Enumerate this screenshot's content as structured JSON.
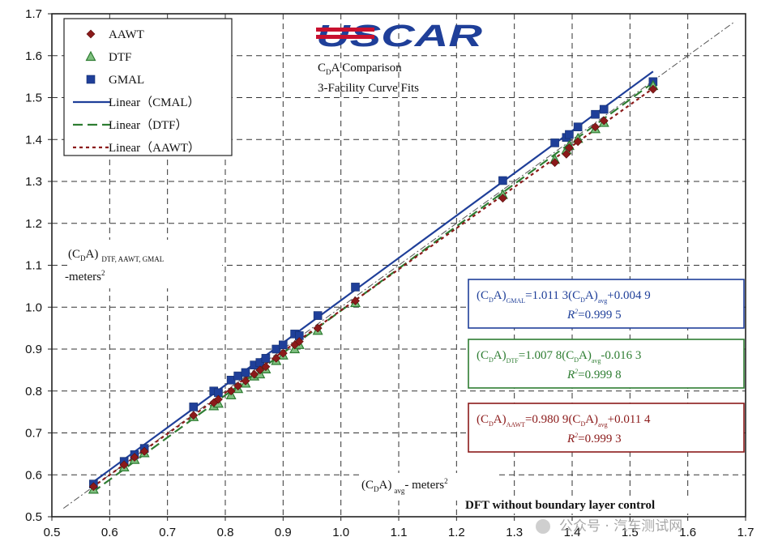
{
  "chart_data": {
    "type": "scatter",
    "title_line1": "C",
    "title_sub": "D",
    "title_line1_rest": "A Comparison",
    "title_line2": "3-Facility Curve Fits",
    "logo_text": "USCAR",
    "xlim": [
      0.5,
      1.7
    ],
    "ylim": [
      0.5,
      1.7
    ],
    "x_ticks": [
      "0.5",
      "0.6",
      "0.7",
      "0.8",
      "0.9",
      "1.0",
      "1.1",
      "1.2",
      "1.3",
      "1.4",
      "1.5",
      "1.6",
      "1.7"
    ],
    "y_ticks": [
      "0.5",
      "0.6",
      "0.7",
      "0.8",
      "0.9",
      "1.0",
      "1.1",
      "1.2",
      "1.3",
      "1.4",
      "1.5",
      "1.6",
      "1.7"
    ],
    "grid": true,
    "legend_position": "top-left",
    "ylabel": {
      "open": "(C",
      "sub_d": "D",
      "close": "A)",
      "subscript": "DTF, AAWT, GMAL",
      "units": "meters",
      "sup": "2"
    },
    "xlabel": {
      "open": "(C",
      "sub_d": "D",
      "close": "A)",
      "subscript": "avg",
      "units": "- meters",
      "sup": "2"
    },
    "footer_note": "DFT without boundary layer control",
    "watermark": "公众号 · 汽车测试网",
    "colors": {
      "AAWT": "#8b1a1a",
      "DTF": "#2e7d32",
      "GMAL": "#1f3f99",
      "grid": "#333333",
      "identity": "#555555"
    },
    "legend": [
      {
        "key": "AAWT",
        "label": "AAWT",
        "marker": "diamond"
      },
      {
        "key": "DTF",
        "label": "DTF",
        "marker": "triangle"
      },
      {
        "key": "GMAL",
        "label": "GMAL",
        "marker": "square"
      },
      {
        "key": "GMAL",
        "label": "Linear（CMAL）",
        "line": "solid"
      },
      {
        "key": "DTF",
        "label": "Linear（DTF）",
        "line": "dash"
      },
      {
        "key": "AAWT",
        "label": "Linear（AAWT）",
        "line": "dot"
      }
    ],
    "equations": [
      {
        "key": "GMAL",
        "lhs_sub": "GMAL",
        "coef": "=1.011 3",
        "tail": "+0.004 9",
        "r2": "=0.999 5"
      },
      {
        "key": "DTF",
        "lhs_sub": "DTF",
        "coef": "=1.007 8",
        "tail": "-0.016 3",
        "r2": "=0.999 8"
      },
      {
        "key": "AAWT",
        "lhs_sub": "AAWT",
        "coef": "=0.980 9",
        "tail": "+0.011 4",
        "r2": "=0.999 3"
      }
    ],
    "fits": [
      {
        "key": "GMAL",
        "slope": 1.0113,
        "intercept": 0.0049,
        "x_range": [
          0.57,
          1.54
        ],
        "style": "solid"
      },
      {
        "key": "DTF",
        "slope": 1.0078,
        "intercept": -0.0163,
        "x_range": [
          0.57,
          1.54
        ],
        "style": "dash"
      },
      {
        "key": "AAWT",
        "slope": 0.9809,
        "intercept": 0.0114,
        "x_range": [
          0.57,
          1.54
        ],
        "style": "dot"
      }
    ],
    "identity_line": [
      0.52,
      1.68
    ],
    "series": [
      {
        "name": "GMAL",
        "marker": "square",
        "points": [
          [
            0.572,
            0.578
          ],
          [
            0.625,
            0.632
          ],
          [
            0.643,
            0.648
          ],
          [
            0.66,
            0.663
          ],
          [
            0.745,
            0.762
          ],
          [
            0.78,
            0.8
          ],
          [
            0.788,
            0.796
          ],
          [
            0.81,
            0.826
          ],
          [
            0.822,
            0.836
          ],
          [
            0.835,
            0.844
          ],
          [
            0.85,
            0.862
          ],
          [
            0.86,
            0.868
          ],
          [
            0.87,
            0.878
          ],
          [
            0.888,
            0.9
          ],
          [
            0.9,
            0.91
          ],
          [
            0.92,
            0.936
          ],
          [
            0.928,
            0.932
          ],
          [
            0.96,
            0.98
          ],
          [
            1.025,
            1.048
          ],
          [
            1.28,
            1.302
          ],
          [
            1.37,
            1.392
          ],
          [
            1.39,
            1.405
          ],
          [
            1.395,
            1.412
          ],
          [
            1.41,
            1.43
          ],
          [
            1.44,
            1.46
          ],
          [
            1.455,
            1.472
          ],
          [
            1.54,
            1.538
          ]
        ]
      },
      {
        "name": "DTF",
        "marker": "triangle",
        "points": [
          [
            0.572,
            0.565
          ],
          [
            0.625,
            0.618
          ],
          [
            0.643,
            0.636
          ],
          [
            0.66,
            0.652
          ],
          [
            0.745,
            0.738
          ],
          [
            0.78,
            0.764
          ],
          [
            0.788,
            0.77
          ],
          [
            0.81,
            0.79
          ],
          [
            0.822,
            0.805
          ],
          [
            0.835,
            0.818
          ],
          [
            0.85,
            0.835
          ],
          [
            0.86,
            0.84
          ],
          [
            0.87,
            0.852
          ],
          [
            0.888,
            0.872
          ],
          [
            0.9,
            0.885
          ],
          [
            0.92,
            0.9
          ],
          [
            0.928,
            0.91
          ],
          [
            0.96,
            0.944
          ],
          [
            1.025,
            1.01
          ],
          [
            1.28,
            1.268
          ],
          [
            1.37,
            1.352
          ],
          [
            1.39,
            1.375
          ],
          [
            1.395,
            1.385
          ],
          [
            1.41,
            1.402
          ],
          [
            1.44,
            1.425
          ],
          [
            1.455,
            1.44
          ],
          [
            1.54,
            1.528
          ]
        ]
      },
      {
        "name": "AAWT",
        "marker": "diamond",
        "points": [
          [
            0.572,
            0.572
          ],
          [
            0.625,
            0.624
          ],
          [
            0.643,
            0.642
          ],
          [
            0.66,
            0.656
          ],
          [
            0.745,
            0.742
          ],
          [
            0.78,
            0.772
          ],
          [
            0.788,
            0.78
          ],
          [
            0.81,
            0.8
          ],
          [
            0.822,
            0.812
          ],
          [
            0.835,
            0.824
          ],
          [
            0.85,
            0.84
          ],
          [
            0.86,
            0.85
          ],
          [
            0.87,
            0.858
          ],
          [
            0.888,
            0.878
          ],
          [
            0.9,
            0.89
          ],
          [
            0.92,
            0.91
          ],
          [
            0.928,
            0.918
          ],
          [
            0.96,
            0.95
          ],
          [
            1.025,
            1.015
          ],
          [
            1.28,
            1.26
          ],
          [
            1.37,
            1.345
          ],
          [
            1.39,
            1.365
          ],
          [
            1.395,
            1.38
          ],
          [
            1.41,
            1.395
          ],
          [
            1.44,
            1.43
          ],
          [
            1.455,
            1.445
          ],
          [
            1.54,
            1.52
          ]
        ]
      }
    ]
  }
}
